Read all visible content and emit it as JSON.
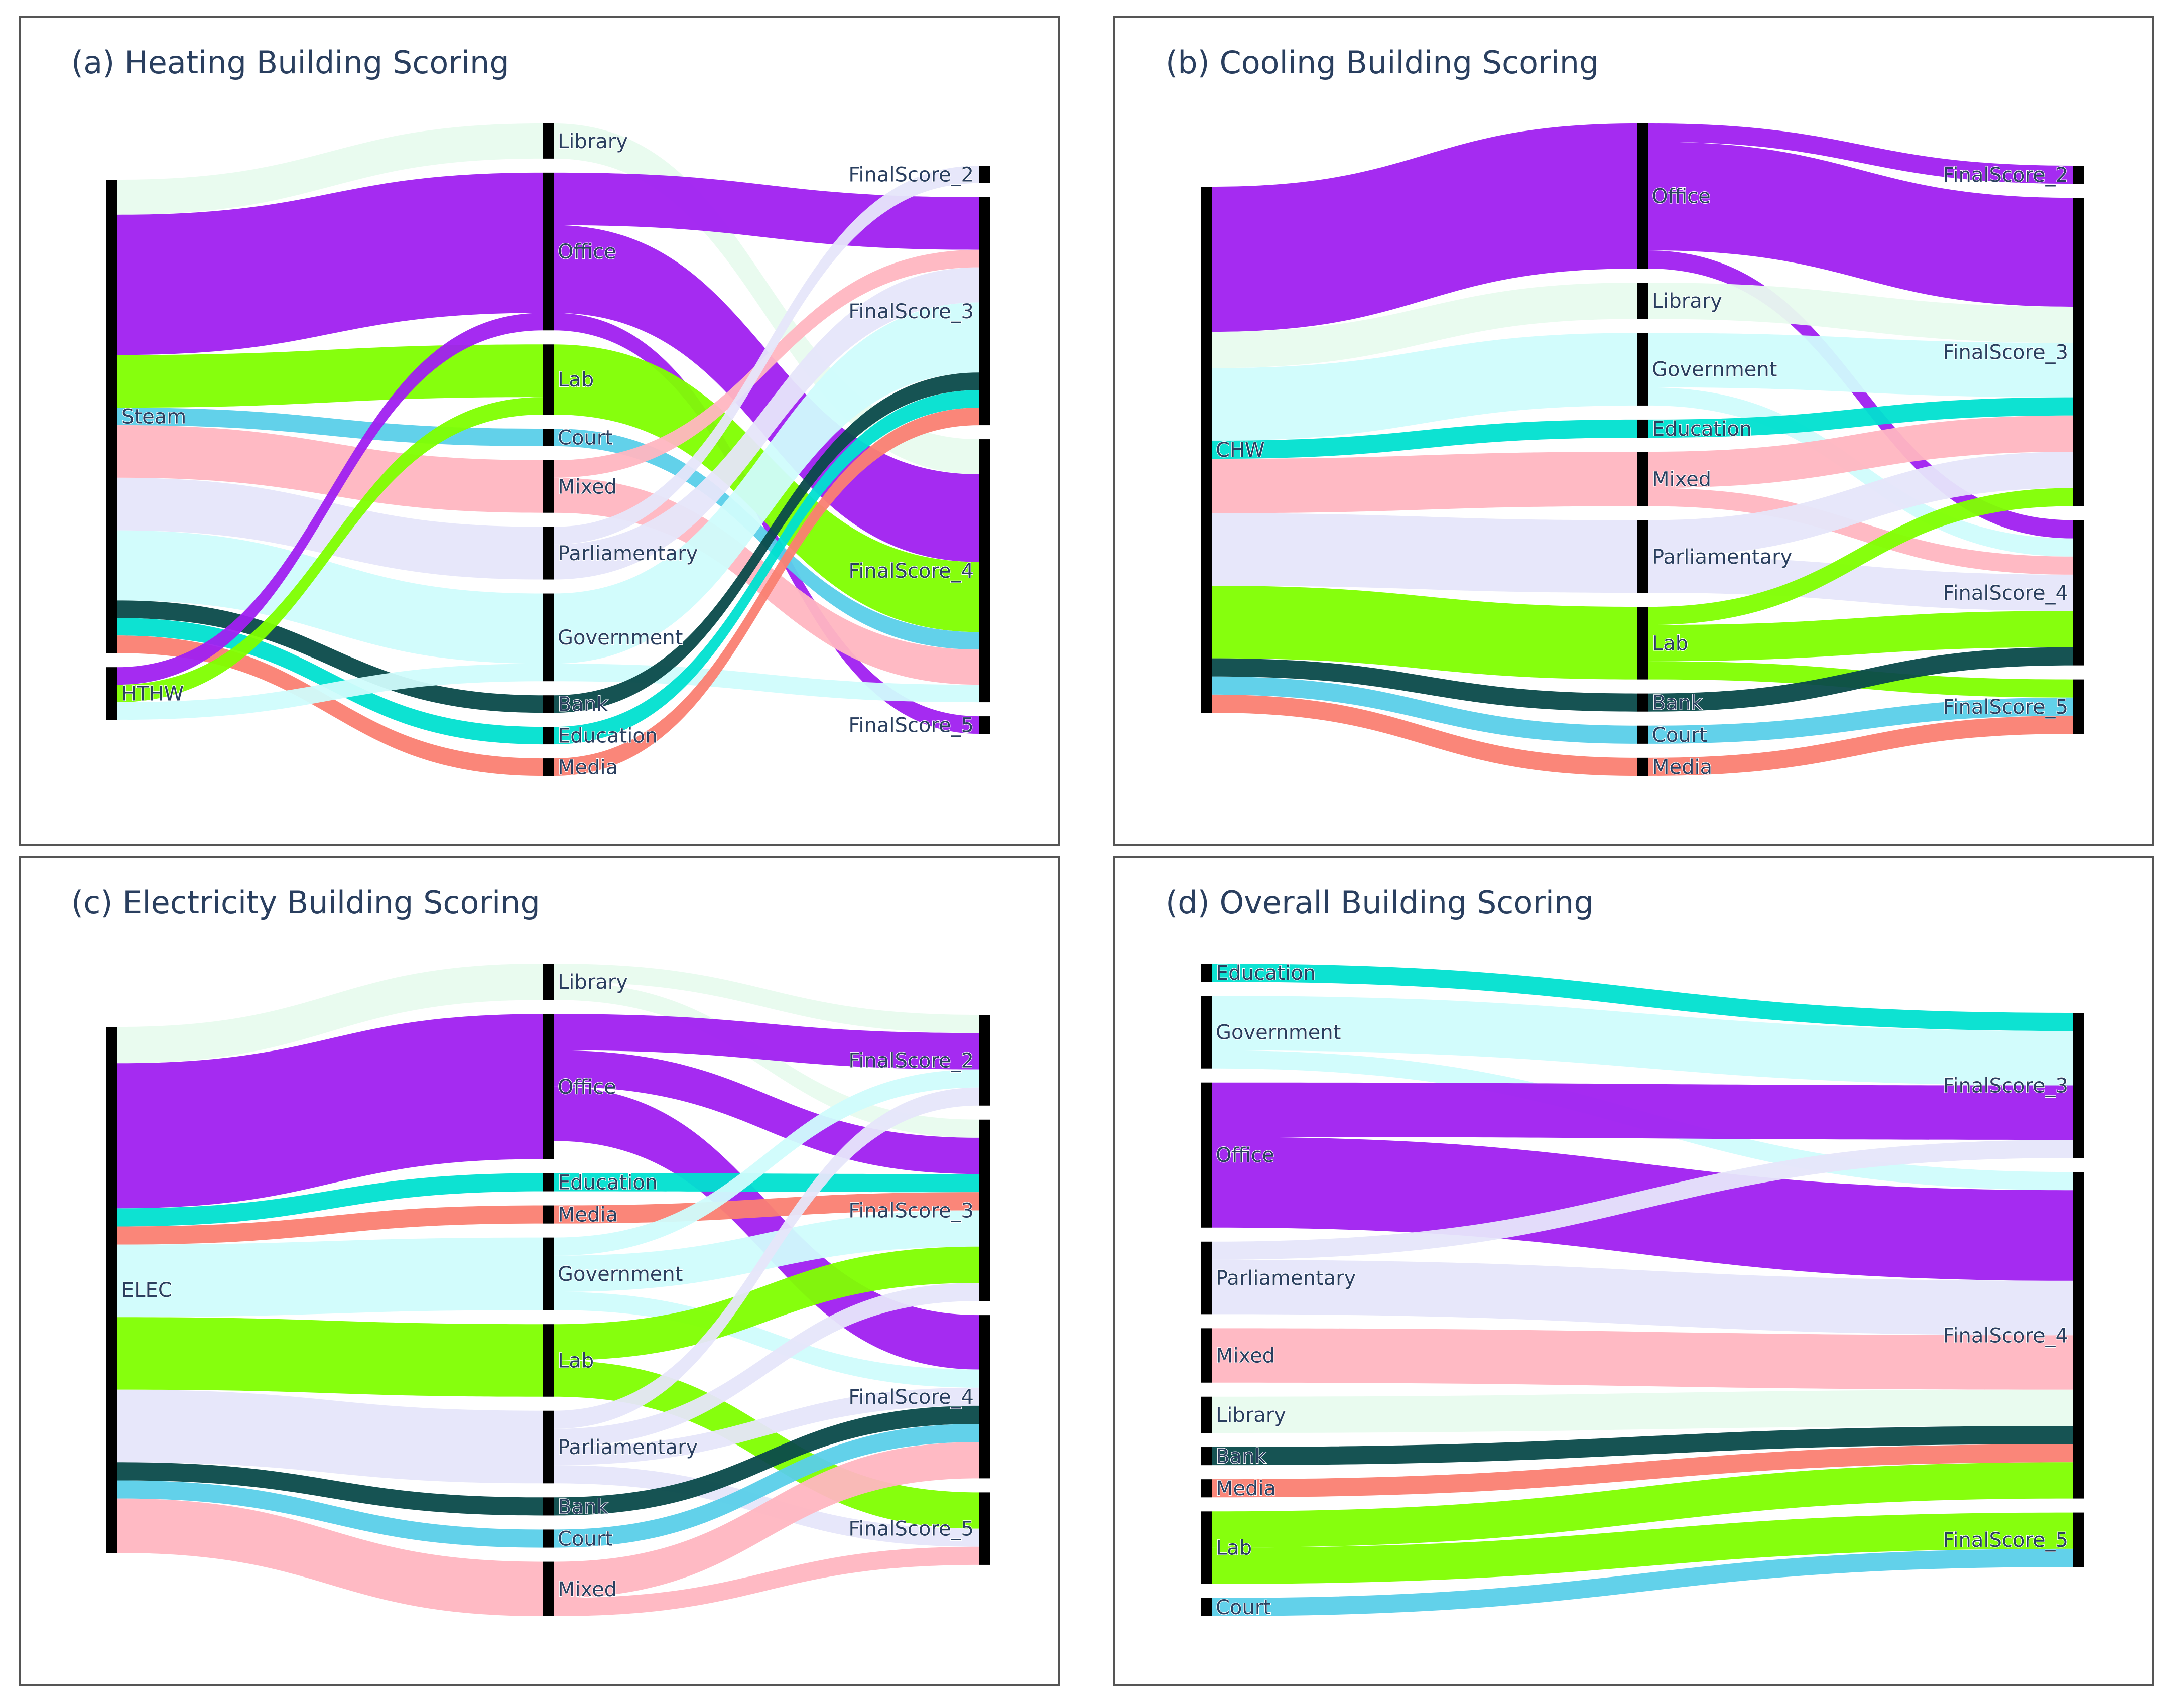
{
  "chart_data": [
    {
      "type": "sankey",
      "title": "(a) Heating Building Scoring",
      "colors": {
        "Library": "#e8fbee",
        "Office": "#a020f0",
        "Lab": "#7fff00",
        "Court": "#5acfe9",
        "Mixed": "#ffb6c1",
        "Parliamentary": "#e6e6fa",
        "Government": "#d0fcfc",
        "Bank": "#0a4a4a",
        "Education": "#00e0d0",
        "Media": "#fa8072"
      },
      "columns": [
        [
          "Steam",
          "HTHW"
        ],
        [
          "Library",
          "Office",
          "Lab",
          "Court",
          "Mixed",
          "Parliamentary",
          "Government",
          "Bank",
          "Education",
          "Media"
        ],
        [
          "FinalScore_2",
          "FinalScore_3",
          "FinalScore_4",
          "FinalScore_5"
        ]
      ],
      "links": [
        {
          "source": "Steam",
          "target": "Library",
          "value": 2,
          "color": "Library"
        },
        {
          "source": "Steam",
          "target": "Office",
          "value": 8,
          "color": "Office"
        },
        {
          "source": "Steam",
          "target": "Lab",
          "value": 3,
          "color": "Lab"
        },
        {
          "source": "Steam",
          "target": "Court",
          "value": 1,
          "color": "Court"
        },
        {
          "source": "Steam",
          "target": "Mixed",
          "value": 3,
          "color": "Mixed"
        },
        {
          "source": "Steam",
          "target": "Parliamentary",
          "value": 3,
          "color": "Parliamentary"
        },
        {
          "source": "Steam",
          "target": "Government",
          "value": 4,
          "color": "Government"
        },
        {
          "source": "Steam",
          "target": "Bank",
          "value": 1,
          "color": "Bank"
        },
        {
          "source": "Steam",
          "target": "Education",
          "value": 1,
          "color": "Education"
        },
        {
          "source": "Steam",
          "target": "Media",
          "value": 1,
          "color": "Media"
        },
        {
          "source": "HTHW",
          "target": "Office",
          "value": 1,
          "color": "Office"
        },
        {
          "source": "HTHW",
          "target": "Lab",
          "value": 1,
          "color": "Lab"
        },
        {
          "source": "HTHW",
          "target": "Government",
          "value": 1,
          "color": "Government"
        },
        {
          "source": "Library",
          "target": "FinalScore_4",
          "value": 2,
          "color": "Library"
        },
        {
          "source": "Office",
          "target": "FinalScore_3",
          "value": 3,
          "color": "Office"
        },
        {
          "source": "Office",
          "target": "FinalScore_4",
          "value": 5,
          "color": "Office"
        },
        {
          "source": "Office",
          "target": "FinalScore_5",
          "value": 1,
          "color": "Office"
        },
        {
          "source": "Lab",
          "target": "FinalScore_4",
          "value": 4,
          "color": "Lab"
        },
        {
          "source": "Court",
          "target": "FinalScore_4",
          "value": 1,
          "color": "Court"
        },
        {
          "source": "Mixed",
          "target": "FinalScore_3",
          "value": 1,
          "color": "Mixed"
        },
        {
          "source": "Mixed",
          "target": "FinalScore_4",
          "value": 2,
          "color": "Mixed"
        },
        {
          "source": "Parliamentary",
          "target": "FinalScore_2",
          "value": 1,
          "color": "Parliamentary"
        },
        {
          "source": "Parliamentary",
          "target": "FinalScore_3",
          "value": 2,
          "color": "Parliamentary"
        },
        {
          "source": "Government",
          "target": "FinalScore_3",
          "value": 4,
          "color": "Government"
        },
        {
          "source": "Government",
          "target": "FinalScore_4",
          "value": 1,
          "color": "Government"
        },
        {
          "source": "Bank",
          "target": "FinalScore_3",
          "value": 1,
          "color": "Bank"
        },
        {
          "source": "Education",
          "target": "FinalScore_3",
          "value": 1,
          "color": "Education"
        },
        {
          "source": "Media",
          "target": "FinalScore_3",
          "value": 1,
          "color": "Media"
        }
      ]
    },
    {
      "type": "sankey",
      "title": "(b) Cooling Building Scoring",
      "colors": {
        "Office": "#a020f0",
        "Library": "#e8fbee",
        "Government": "#d0fcfc",
        "Education": "#00e0d0",
        "Mixed": "#ffb6c1",
        "Parliamentary": "#e6e6fa",
        "Lab": "#7fff00",
        "Bank": "#0a4a4a",
        "Court": "#5acfe9",
        "Media": "#fa8072"
      },
      "columns": [
        [
          "CHW"
        ],
        [
          "Office",
          "Library",
          "Government",
          "Education",
          "Mixed",
          "Parliamentary",
          "Lab",
          "Bank",
          "Court",
          "Media"
        ],
        [
          "FinalScore_2",
          "FinalScore_3",
          "FinalScore_4",
          "FinalScore_5"
        ]
      ],
      "links": [
        {
          "source": "CHW",
          "target": "Office",
          "value": 8,
          "color": "Office"
        },
        {
          "source": "CHW",
          "target": "Library",
          "value": 2,
          "color": "Library"
        },
        {
          "source": "CHW",
          "target": "Government",
          "value": 4,
          "color": "Government"
        },
        {
          "source": "CHW",
          "target": "Education",
          "value": 1,
          "color": "Education"
        },
        {
          "source": "CHW",
          "target": "Mixed",
          "value": 3,
          "color": "Mixed"
        },
        {
          "source": "CHW",
          "target": "Parliamentary",
          "value": 4,
          "color": "Parliamentary"
        },
        {
          "source": "CHW",
          "target": "Lab",
          "value": 4,
          "color": "Lab"
        },
        {
          "source": "CHW",
          "target": "Bank",
          "value": 1,
          "color": "Bank"
        },
        {
          "source": "CHW",
          "target": "Court",
          "value": 1,
          "color": "Court"
        },
        {
          "source": "CHW",
          "target": "Media",
          "value": 1,
          "color": "Media"
        },
        {
          "source": "Office",
          "target": "FinalScore_2",
          "value": 1,
          "color": "Office"
        },
        {
          "source": "Office",
          "target": "FinalScore_3",
          "value": 6,
          "color": "Office"
        },
        {
          "source": "Office",
          "target": "FinalScore_4",
          "value": 1,
          "color": "Office"
        },
        {
          "source": "Library",
          "target": "FinalScore_3",
          "value": 2,
          "color": "Library"
        },
        {
          "source": "Government",
          "target": "FinalScore_3",
          "value": 3,
          "color": "Government"
        },
        {
          "source": "Government",
          "target": "FinalScore_4",
          "value": 1,
          "color": "Government"
        },
        {
          "source": "Education",
          "target": "FinalScore_3",
          "value": 1,
          "color": "Education"
        },
        {
          "source": "Mixed",
          "target": "FinalScore_3",
          "value": 2,
          "color": "Mixed"
        },
        {
          "source": "Mixed",
          "target": "FinalScore_4",
          "value": 1,
          "color": "Mixed"
        },
        {
          "source": "Parliamentary",
          "target": "FinalScore_3",
          "value": 2,
          "color": "Parliamentary"
        },
        {
          "source": "Parliamentary",
          "target": "FinalScore_4",
          "value": 2,
          "color": "Parliamentary"
        },
        {
          "source": "Lab",
          "target": "FinalScore_3",
          "value": 1,
          "color": "Lab"
        },
        {
          "source": "Lab",
          "target": "FinalScore_4",
          "value": 2,
          "color": "Lab"
        },
        {
          "source": "Lab",
          "target": "FinalScore_5",
          "value": 1,
          "color": "Lab"
        },
        {
          "source": "Bank",
          "target": "FinalScore_4",
          "value": 1,
          "color": "Bank"
        },
        {
          "source": "Court",
          "target": "FinalScore_5",
          "value": 1,
          "color": "Court"
        },
        {
          "source": "Media",
          "target": "FinalScore_5",
          "value": 1,
          "color": "Media"
        }
      ]
    },
    {
      "type": "sankey",
      "title": "(c) Electricity Building Scoring",
      "colors": {
        "Library": "#e8fbee",
        "Office": "#a020f0",
        "Education": "#00e0d0",
        "Media": "#fa8072",
        "Government": "#d0fcfc",
        "Lab": "#7fff00",
        "Parliamentary": "#e6e6fa",
        "Bank": "#0a4a4a",
        "Court": "#5acfe9",
        "Mixed": "#ffb6c1"
      },
      "columns": [
        [
          "ELEC"
        ],
        [
          "Library",
          "Office",
          "Education",
          "Media",
          "Government",
          "Lab",
          "Parliamentary",
          "Bank",
          "Court",
          "Mixed"
        ],
        [
          "FinalScore_2",
          "FinalScore_3",
          "FinalScore_4",
          "FinalScore_5"
        ]
      ],
      "links": [
        {
          "source": "ELEC",
          "target": "Library",
          "value": 2,
          "color": "Library"
        },
        {
          "source": "ELEC",
          "target": "Office",
          "value": 8,
          "color": "Office"
        },
        {
          "source": "ELEC",
          "target": "Education",
          "value": 1,
          "color": "Education"
        },
        {
          "source": "ELEC",
          "target": "Media",
          "value": 1,
          "color": "Media"
        },
        {
          "source": "ELEC",
          "target": "Government",
          "value": 4,
          "color": "Government"
        },
        {
          "source": "ELEC",
          "target": "Lab",
          "value": 4,
          "color": "Lab"
        },
        {
          "source": "ELEC",
          "target": "Parliamentary",
          "value": 4,
          "color": "Parliamentary"
        },
        {
          "source": "ELEC",
          "target": "Bank",
          "value": 1,
          "color": "Bank"
        },
        {
          "source": "ELEC",
          "target": "Court",
          "value": 1,
          "color": "Court"
        },
        {
          "source": "ELEC",
          "target": "Mixed",
          "value": 3,
          "color": "Mixed"
        },
        {
          "source": "Library",
          "target": "FinalScore_2",
          "value": 1,
          "color": "Library"
        },
        {
          "source": "Library",
          "target": "FinalScore_3",
          "value": 1,
          "color": "Library"
        },
        {
          "source": "Office",
          "target": "FinalScore_2",
          "value": 2,
          "color": "Office"
        },
        {
          "source": "Office",
          "target": "FinalScore_3",
          "value": 2,
          "color": "Office"
        },
        {
          "source": "Office",
          "target": "FinalScore_4",
          "value": 3,
          "color": "Office"
        },
        {
          "source": "Education",
          "target": "FinalScore_3",
          "value": 1,
          "color": "Education"
        },
        {
          "source": "Media",
          "target": "FinalScore_3",
          "value": 1,
          "color": "Media"
        },
        {
          "source": "Government",
          "target": "FinalScore_2",
          "value": 1,
          "color": "Government"
        },
        {
          "source": "Government",
          "target": "FinalScore_3",
          "value": 2,
          "color": "Government"
        },
        {
          "source": "Government",
          "target": "FinalScore_4",
          "value": 1,
          "color": "Government"
        },
        {
          "source": "Lab",
          "target": "FinalScore_3",
          "value": 2,
          "color": "Lab"
        },
        {
          "source": "Lab",
          "target": "FinalScore_5",
          "value": 2,
          "color": "Lab"
        },
        {
          "source": "Parliamentary",
          "target": "FinalScore_2",
          "value": 1,
          "color": "Parliamentary"
        },
        {
          "source": "Parliamentary",
          "target": "FinalScore_3",
          "value": 1,
          "color": "Parliamentary"
        },
        {
          "source": "Parliamentary",
          "target": "FinalScore_4",
          "value": 1,
          "color": "Parliamentary"
        },
        {
          "source": "Parliamentary",
          "target": "FinalScore_5",
          "value": 1,
          "color": "Parliamentary"
        },
        {
          "source": "Bank",
          "target": "FinalScore_4",
          "value": 1,
          "color": "Bank"
        },
        {
          "source": "Court",
          "target": "FinalScore_4",
          "value": 1,
          "color": "Court"
        },
        {
          "source": "Mixed",
          "target": "FinalScore_4",
          "value": 2,
          "color": "Mixed"
        },
        {
          "source": "Mixed",
          "target": "FinalScore_5",
          "value": 1,
          "color": "Mixed"
        }
      ]
    },
    {
      "type": "sankey",
      "title": "(d) Overall Building Scoring",
      "colors": {
        "Education": "#00e0d0",
        "Government": "#d0fcfc",
        "Office": "#a020f0",
        "Parliamentary": "#e6e6fa",
        "Mixed": "#ffb6c1",
        "Library": "#e8fbee",
        "Bank": "#0a4a4a",
        "Media": "#fa8072",
        "Lab": "#7fff00",
        "Court": "#5acfe9"
      },
      "columns": [
        [
          "Education",
          "Government",
          "Office",
          "Parliamentary",
          "Mixed",
          "Library",
          "Bank",
          "Media",
          "Lab",
          "Court"
        ],
        [
          "FinalScore_3",
          "FinalScore_4",
          "FinalScore_5"
        ]
      ],
      "links": [
        {
          "source": "Education",
          "target": "FinalScore_3",
          "value": 1,
          "color": "Education"
        },
        {
          "source": "Government",
          "target": "FinalScore_3",
          "value": 3,
          "color": "Government"
        },
        {
          "source": "Government",
          "target": "FinalScore_4",
          "value": 1,
          "color": "Government"
        },
        {
          "source": "Office",
          "target": "FinalScore_3",
          "value": 3,
          "color": "Office"
        },
        {
          "source": "Office",
          "target": "FinalScore_4",
          "value": 5,
          "color": "Office"
        },
        {
          "source": "Parliamentary",
          "target": "FinalScore_3",
          "value": 1,
          "color": "Parliamentary"
        },
        {
          "source": "Parliamentary",
          "target": "FinalScore_4",
          "value": 3,
          "color": "Parliamentary"
        },
        {
          "source": "Mixed",
          "target": "FinalScore_4",
          "value": 3,
          "color": "Mixed"
        },
        {
          "source": "Library",
          "target": "FinalScore_4",
          "value": 2,
          "color": "Library"
        },
        {
          "source": "Bank",
          "target": "FinalScore_4",
          "value": 1,
          "color": "Bank"
        },
        {
          "source": "Media",
          "target": "FinalScore_4",
          "value": 1,
          "color": "Media"
        },
        {
          "source": "Lab",
          "target": "FinalScore_4",
          "value": 2,
          "color": "Lab"
        },
        {
          "source": "Lab",
          "target": "FinalScore_5",
          "value": 2,
          "color": "Lab"
        },
        {
          "source": "Court",
          "target": "FinalScore_5",
          "value": 1,
          "color": "Court"
        }
      ]
    }
  ]
}
